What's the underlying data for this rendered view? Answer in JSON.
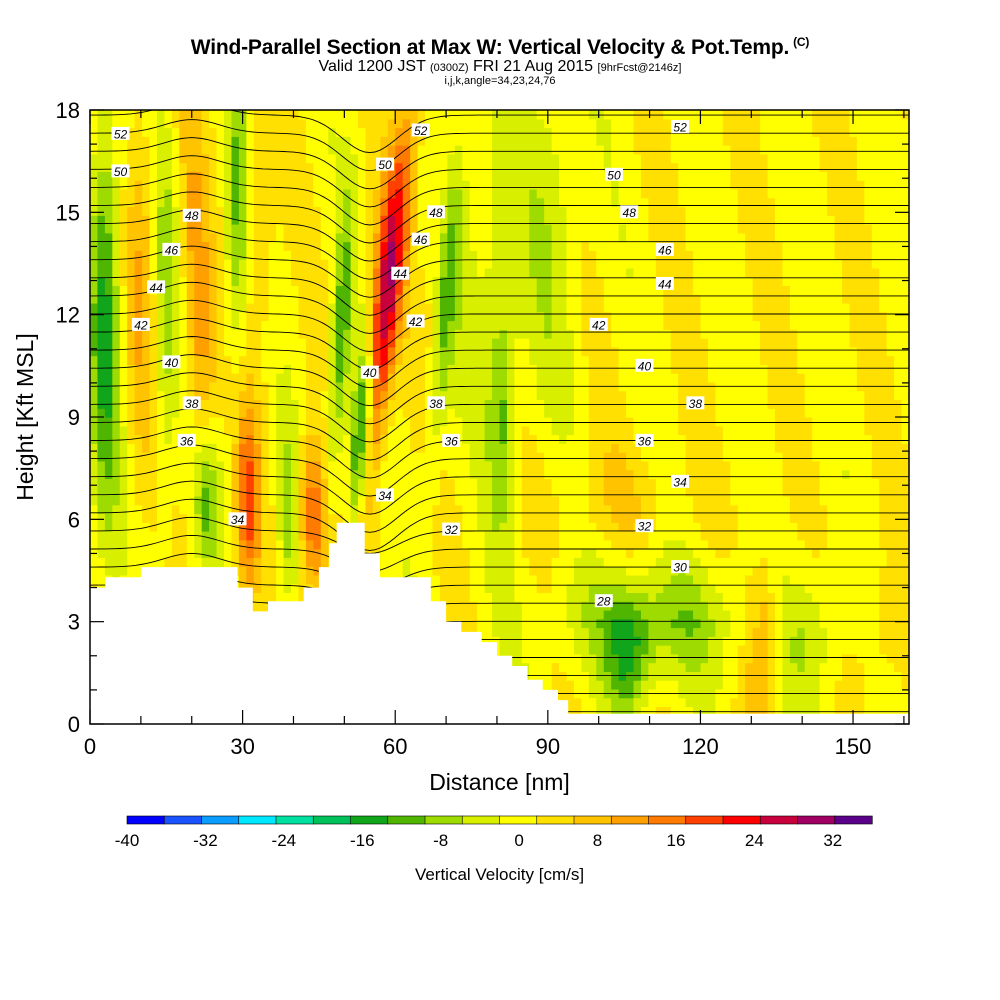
{
  "header": {
    "title": "Wind-Parallel Section at Max W: Vertical Velocity & Pot.Temp.",
    "title_tag": "(C)",
    "subtitle_valid": "Valid 1200 JST",
    "subtitle_z": "(0300Z)",
    "subtitle_date": "FRI 21 Aug 2015",
    "subtitle_fcst": "[9hrFcst@2146z]",
    "subtitle_indices": "i,j,k,angle=34,23,24,76"
  },
  "chart_data": {
    "type": "heatmap",
    "title": "Wind-Parallel Section at Max W: Vertical Velocity & Pot.Temp.",
    "xlabel": "Distance [nm]",
    "ylabel": "Height [Kft MSL]",
    "xlim": [
      0,
      161
    ],
    "ylim": [
      0,
      18
    ],
    "x_ticks": [
      0,
      30,
      60,
      90,
      120,
      150
    ],
    "y_ticks": [
      0,
      3,
      6,
      9,
      12,
      15,
      18
    ],
    "colorbar": {
      "title": "Vertical Velocity [cm/s]",
      "ticks": [
        -40,
        -32,
        -24,
        -16,
        -8,
        0,
        8,
        16,
        24,
        32
      ],
      "bounds": [
        -40,
        36
      ],
      "step": 4,
      "colors": [
        "#0000ff",
        "#1a53ff",
        "#0a9cff",
        "#00e8ff",
        "#00e0a0",
        "#00c25a",
        "#11a51b",
        "#50b500",
        "#9edb00",
        "#d8f000",
        "#ffff00",
        "#ffe000",
        "#ffc300",
        "#ffa000",
        "#ff7a00",
        "#ff4000",
        "#ff0000",
        "#c8003c",
        "#a00064",
        "#5a008a"
      ]
    },
    "terrain": [
      [
        0,
        4.0
      ],
      [
        3,
        4.0
      ],
      [
        3,
        4.3
      ],
      [
        10,
        4.3
      ],
      [
        10,
        4.6
      ],
      [
        29,
        4.6
      ],
      [
        29,
        4.0
      ],
      [
        32,
        4.0
      ],
      [
        32,
        3.3
      ],
      [
        35,
        3.3
      ],
      [
        35,
        3.6
      ],
      [
        42,
        3.6
      ],
      [
        42,
        4.0
      ],
      [
        45,
        4.0
      ],
      [
        45,
        4.6
      ],
      [
        47,
        4.6
      ],
      [
        47,
        5.3
      ],
      [
        48.5,
        5.3
      ],
      [
        48.5,
        5.9
      ],
      [
        54,
        5.9
      ],
      [
        54,
        5.0
      ],
      [
        57,
        5.0
      ],
      [
        57,
        4.3
      ],
      [
        67,
        4.3
      ],
      [
        67,
        3.6
      ],
      [
        70,
        3.6
      ],
      [
        70,
        3.0
      ],
      [
        73,
        3.0
      ],
      [
        73,
        2.7
      ],
      [
        77,
        2.7
      ],
      [
        77,
        2.4
      ],
      [
        80,
        2.4
      ],
      [
        80,
        2.0
      ],
      [
        83,
        2.0
      ],
      [
        83,
        1.7
      ],
      [
        86,
        1.7
      ],
      [
        86,
        1.3
      ],
      [
        89,
        1.3
      ],
      [
        89,
        1.0
      ],
      [
        92,
        1.0
      ],
      [
        92,
        0.7
      ],
      [
        94,
        0.7
      ],
      [
        94,
        0.3
      ],
      [
        161,
        0.3
      ]
    ],
    "contour_labels": [
      {
        "text": "52",
        "x": 6,
        "y": 17.3
      },
      {
        "text": "50",
        "x": 6,
        "y": 16.2
      },
      {
        "text": "48",
        "x": 20,
        "y": 14.9
      },
      {
        "text": "46",
        "x": 16,
        "y": 13.9
      },
      {
        "text": "44",
        "x": 13,
        "y": 12.8
      },
      {
        "text": "42",
        "x": 10,
        "y": 11.7
      },
      {
        "text": "40",
        "x": 16,
        "y": 10.6
      },
      {
        "text": "38",
        "x": 20,
        "y": 9.4
      },
      {
        "text": "36",
        "x": 19,
        "y": 8.3
      },
      {
        "text": "34",
        "x": 29,
        "y": 6.0
      },
      {
        "text": "52",
        "x": 65,
        "y": 17.4
      },
      {
        "text": "50",
        "x": 58,
        "y": 16.4
      },
      {
        "text": "48",
        "x": 68,
        "y": 15.0
      },
      {
        "text": "46",
        "x": 65,
        "y": 14.2
      },
      {
        "text": "44",
        "x": 61,
        "y": 13.2
      },
      {
        "text": "42",
        "x": 64,
        "y": 11.8
      },
      {
        "text": "40",
        "x": 55,
        "y": 10.3
      },
      {
        "text": "38",
        "x": 68,
        "y": 9.4
      },
      {
        "text": "36",
        "x": 71,
        "y": 8.3
      },
      {
        "text": "34",
        "x": 58,
        "y": 6.7
      },
      {
        "text": "32",
        "x": 71,
        "y": 5.7
      },
      {
        "text": "52",
        "x": 116,
        "y": 17.5
      },
      {
        "text": "50",
        "x": 103,
        "y": 16.1
      },
      {
        "text": "48",
        "x": 106,
        "y": 15.0
      },
      {
        "text": "46",
        "x": 113,
        "y": 13.9
      },
      {
        "text": "44",
        "x": 113,
        "y": 12.9
      },
      {
        "text": "42",
        "x": 100,
        "y": 11.7
      },
      {
        "text": "40",
        "x": 109,
        "y": 10.5
      },
      {
        "text": "38",
        "x": 119,
        "y": 9.4
      },
      {
        "text": "36",
        "x": 109,
        "y": 8.3
      },
      {
        "text": "34",
        "x": 116,
        "y": 7.1
      },
      {
        "text": "32",
        "x": 109,
        "y": 5.8
      },
      {
        "text": "30",
        "x": 116,
        "y": 4.6
      },
      {
        "text": "28",
        "x": 101,
        "y": 3.6
      }
    ]
  }
}
